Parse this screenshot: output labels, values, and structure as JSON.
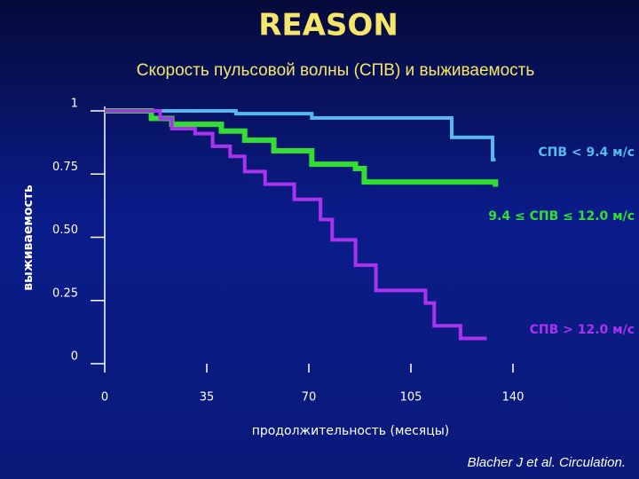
{
  "chart_data": {
    "type": "step",
    "title": "REASON",
    "subtitle": "Скорость пульсовой волны (СПВ)  и выживаемость",
    "x_label": "продолжительность (месяцы)",
    "y_label": "выживаемость",
    "citation": "Blacher J et al. Circulation.",
    "xlim": [
      0,
      140
    ],
    "xticks": [
      0,
      35,
      70,
      105,
      140
    ],
    "ylim": [
      0,
      1
    ],
    "yticks": [
      0,
      0.25,
      {
        "value": 0.5,
        "label": "0.50"
      },
      0.75,
      1
    ],
    "series": [
      {
        "name": "СПВ < 9.4 м/с",
        "color": "#55bbee",
        "x": [
          0,
          45,
          71,
          119,
          133,
          134
        ],
        "values": [
          1,
          0.989,
          0.972,
          0.895,
          0.807,
          0.807
        ]
      },
      {
        "name": "9.4 ≤ СПВ ≤ 12.0 м/с",
        "color": "#33dd33",
        "x": [
          0,
          16,
          23,
          40,
          48,
          58,
          71,
          86,
          89,
          134
        ],
        "values": [
          1,
          0.97,
          0.947,
          0.92,
          0.884,
          0.842,
          0.789,
          0.772,
          0.719,
          0.7
        ]
      },
      {
        "name": "СПВ > 12.0 м/с",
        "color": "#aa33ee",
        "x": [
          0,
          19,
          23,
          31,
          37,
          43,
          48,
          55,
          65,
          74,
          78,
          86,
          93,
          110,
          113,
          122,
          131
        ],
        "values": [
          1,
          0.97,
          0.93,
          0.91,
          0.86,
          0.82,
          0.76,
          0.71,
          0.65,
          0.57,
          0.49,
          0.39,
          0.29,
          0.24,
          0.15,
          0.1,
          0.1
        ]
      }
    ]
  }
}
